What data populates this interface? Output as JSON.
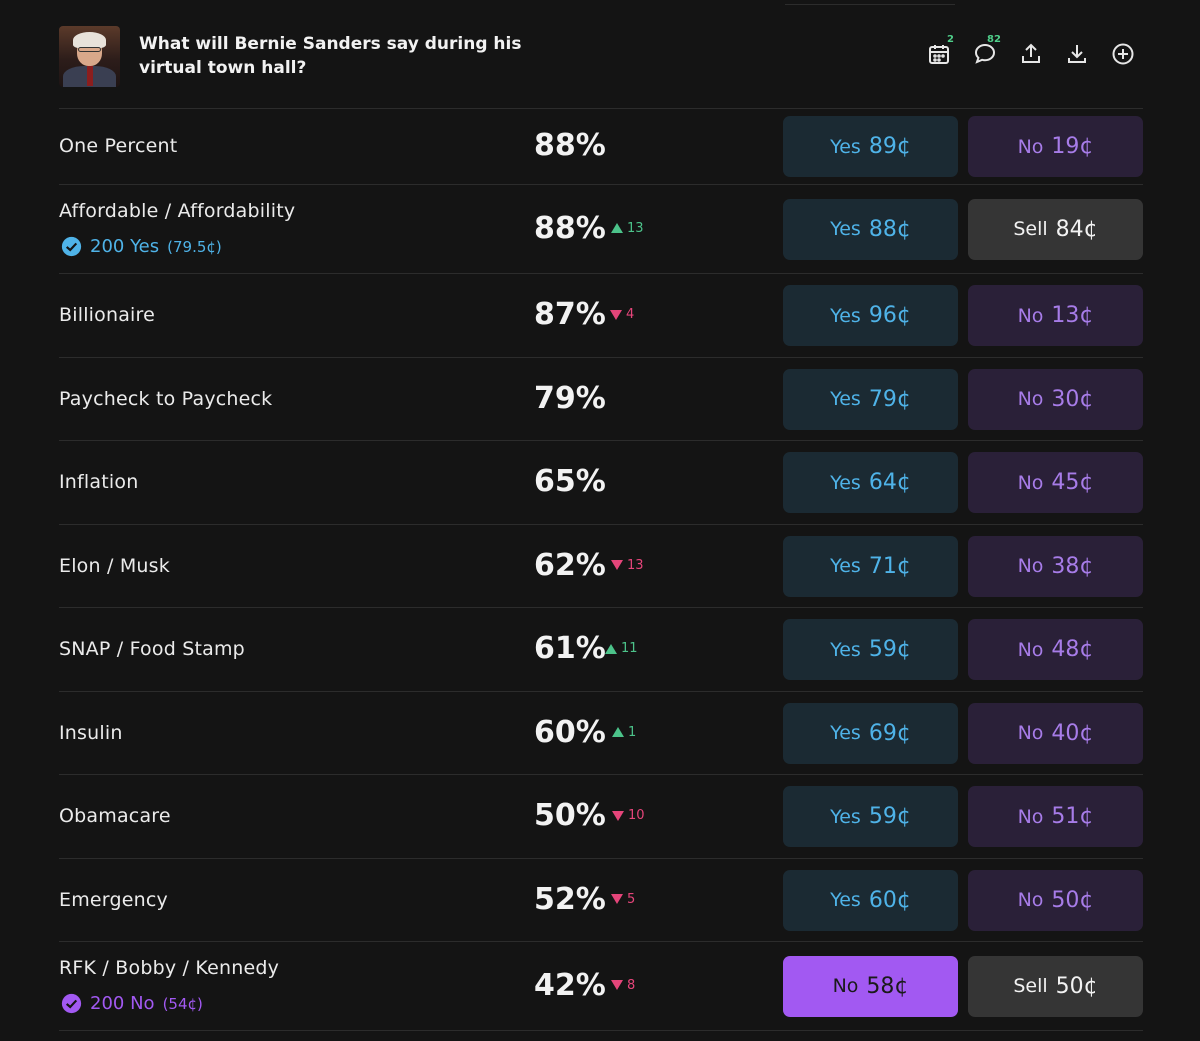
{
  "header": {
    "title": "What will Bernie Sanders say during his virtual town hall?",
    "calendar_badge": "2",
    "comments_badge": "82"
  },
  "rows": [
    {
      "label": "One Percent",
      "pct": "88%",
      "change": null,
      "yes": {
        "label": "Yes",
        "price": "89¢"
      },
      "right": {
        "type": "no",
        "label": "No",
        "price": "19¢"
      }
    },
    {
      "label": "Affordable / Affordability",
      "pct": "88%",
      "change": {
        "dir": "up",
        "value": "13"
      },
      "position": {
        "color": "#4fb3e8",
        "text": "200 Yes",
        "sub": "(79.5¢)"
      },
      "yes": {
        "label": "Yes",
        "price": "88¢"
      },
      "right": {
        "type": "sell",
        "label": "Sell",
        "price": "84¢"
      }
    },
    {
      "label": "Billionaire",
      "pct": "87%",
      "change": {
        "dir": "down",
        "value": "4"
      },
      "yes": {
        "label": "Yes",
        "price": "96¢"
      },
      "right": {
        "type": "no",
        "label": "No",
        "price": "13¢"
      }
    },
    {
      "label": "Paycheck to Paycheck",
      "pct": "79%",
      "change": null,
      "yes": {
        "label": "Yes",
        "price": "79¢"
      },
      "right": {
        "type": "no",
        "label": "No",
        "price": "30¢"
      }
    },
    {
      "label": "Inflation",
      "pct": "65%",
      "change": null,
      "yes": {
        "label": "Yes",
        "price": "64¢"
      },
      "right": {
        "type": "no",
        "label": "No",
        "price": "45¢"
      }
    },
    {
      "label": "Elon / Musk",
      "pct": "62%",
      "change": {
        "dir": "down",
        "value": "13"
      },
      "yes": {
        "label": "Yes",
        "price": "71¢"
      },
      "right": {
        "type": "no",
        "label": "No",
        "price": "38¢"
      }
    },
    {
      "label": "SNAP / Food Stamp",
      "pct": "61%",
      "change": {
        "dir": "up",
        "value": "11"
      },
      "yes": {
        "label": "Yes",
        "price": "59¢"
      },
      "right": {
        "type": "no",
        "label": "No",
        "price": "48¢"
      }
    },
    {
      "label": "Insulin",
      "pct": "60%",
      "change": {
        "dir": "up",
        "value": "1"
      },
      "yes": {
        "label": "Yes",
        "price": "69¢"
      },
      "right": {
        "type": "no",
        "label": "No",
        "price": "40¢"
      }
    },
    {
      "label": "Obamacare",
      "pct": "50%",
      "change": {
        "dir": "down",
        "value": "10"
      },
      "yes": {
        "label": "Yes",
        "price": "59¢"
      },
      "right": {
        "type": "no",
        "label": "No",
        "price": "51¢"
      }
    },
    {
      "label": "Emergency",
      "pct": "52%",
      "change": {
        "dir": "down",
        "value": "5"
      },
      "yes": {
        "label": "Yes",
        "price": "60¢"
      },
      "right": {
        "type": "no",
        "label": "No",
        "price": "50¢"
      }
    },
    {
      "label": "RFK / Bobby / Kennedy",
      "pct": "42%",
      "change": {
        "dir": "down",
        "value": "8"
      },
      "position": {
        "color": "#a259f2",
        "text": "200 No",
        "sub": "(54¢)"
      },
      "yes": {
        "type": "nofill",
        "label": "No",
        "price": "58¢"
      },
      "right": {
        "type": "sell",
        "label": "Sell",
        "price": "50¢"
      }
    }
  ]
}
